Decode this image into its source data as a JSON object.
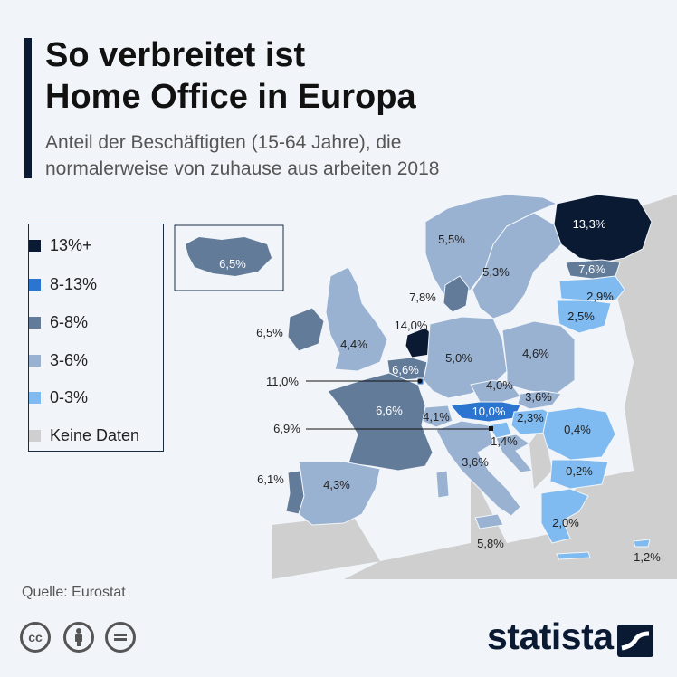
{
  "title_line1": "So verbreitet ist",
  "title_line2": "Home Office in Europa",
  "subtitle_line1": "Anteil der Beschäftigten (15-64 Jahre), die",
  "subtitle_line2": "normalerweise von zuhause aus arbeiten 2018",
  "legend": [
    {
      "label": "13%+",
      "color": "#0b1a33"
    },
    {
      "label": "8-13%",
      "color": "#2b74cf"
    },
    {
      "label": "6-8%",
      "color": "#627b99"
    },
    {
      "label": "3-6%",
      "color": "#9ab2d2"
    },
    {
      "label": "0-3%",
      "color": "#7fbaf0"
    },
    {
      "label": "Keine Daten",
      "color": "#cfcfcf"
    }
  ],
  "countries": {
    "finland": {
      "value": "13,3%",
      "class": "13%+"
    },
    "iceland": {
      "value": "6,5%",
      "class": "6-8%"
    },
    "norway": {
      "value": "5,5%",
      "class": "3-6%"
    },
    "sweden": {
      "value": "5,3%",
      "class": "3-6%"
    },
    "estonia": {
      "value": "7,6%",
      "class": "6-8%"
    },
    "latvia": {
      "value": "2,9%",
      "class": "0-3%"
    },
    "lithuania": {
      "value": "2,5%",
      "class": "0-3%"
    },
    "denmark": {
      "value": "7,8%",
      "class": "6-8%"
    },
    "netherlands": {
      "value": "14,0%",
      "class": "13%+"
    },
    "ireland": {
      "value": "6,5%",
      "class": "6-8%"
    },
    "uk": {
      "value": "4,4%",
      "class": "3-6%"
    },
    "belgium": {
      "value": "6,6%",
      "class": "6-8%"
    },
    "luxembourg": {
      "value": "11,0%",
      "class": "8-13%"
    },
    "germany": {
      "value": "5,0%",
      "class": "3-6%"
    },
    "poland": {
      "value": "4,6%",
      "class": "3-6%"
    },
    "czechia": {
      "value": "4,0%",
      "class": "3-6%"
    },
    "slovakia": {
      "value": "3,6%",
      "class": "3-6%"
    },
    "austria": {
      "value": "10,0%",
      "class": "8-13%"
    },
    "switzerland": {
      "value": "4,1%",
      "class": "3-6%"
    },
    "liechtenstein": {
      "value": "6,9%",
      "class": "6-8%"
    },
    "slovenia": {
      "value": "1,4%",
      "class": "0-3%"
    },
    "hungary": {
      "value": "2,3%",
      "class": "0-3%"
    },
    "romania": {
      "value": "0,4%",
      "class": "0-3%"
    },
    "bulgaria": {
      "value": "0,2%",
      "class": "0-3%"
    },
    "france": {
      "value": "6,6%",
      "class": "6-8%"
    },
    "croatia": {
      "value": "3,6%",
      "class": "3-6%"
    },
    "portugal": {
      "value": "6,1%",
      "class": "6-8%"
    },
    "spain": {
      "value": "4,3%",
      "class": "3-6%"
    },
    "italy": {
      "value": "5,8%",
      "class": "3-6%"
    },
    "greece": {
      "value": "2,0%",
      "class": "0-3%"
    },
    "cyprus": {
      "value": "1,2%",
      "class": "0-3%"
    }
  },
  "source": "Quelle: Eurostat",
  "license_icons": [
    "cc-icon",
    "attribution-icon",
    "no-derivatives-icon"
  ],
  "cc_label": "cc",
  "logo": "statista"
}
